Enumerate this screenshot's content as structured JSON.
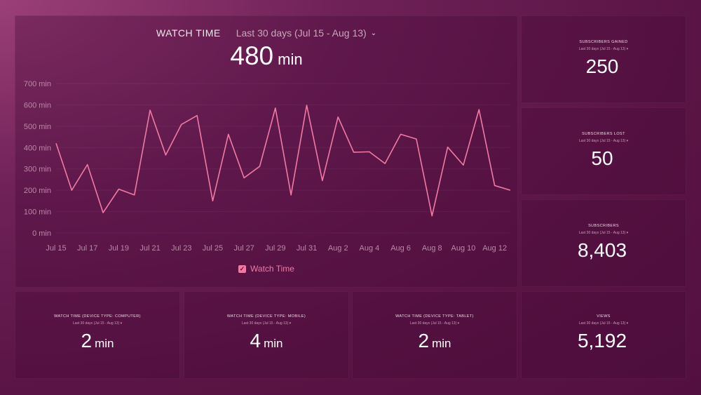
{
  "main": {
    "title": "WATCH TIME",
    "date_range": "Last 30 days (Jul 15 - Aug 13)",
    "metric_value": "480",
    "metric_unit": "min",
    "legend_label": "Watch Time"
  },
  "chart_data": {
    "type": "line",
    "x": [
      "Jul 15",
      "Jul 16",
      "Jul 17",
      "Jul 18",
      "Jul 19",
      "Jul 20",
      "Jul 21",
      "Jul 22",
      "Jul 23",
      "Jul 24",
      "Jul 25",
      "Jul 26",
      "Jul 27",
      "Jul 28",
      "Jul 29",
      "Jul 30",
      "Jul 31",
      "Aug 1",
      "Aug 2",
      "Aug 3",
      "Aug 4",
      "Aug 5",
      "Aug 6",
      "Aug 7",
      "Aug 8",
      "Aug 9",
      "Aug 10",
      "Aug 11",
      "Aug 12",
      "Aug 13"
    ],
    "x_tick_labels": [
      "Jul 15",
      "Jul 17",
      "Jul 19",
      "Jul 21",
      "Jul 23",
      "Jul 25",
      "Jul 27",
      "Jul 29",
      "Jul 31",
      "Aug 2",
      "Aug 4",
      "Aug 6",
      "Aug 8",
      "Aug 10",
      "Aug 12"
    ],
    "series": [
      {
        "name": "Watch Time",
        "values": [
          420,
          200,
          320,
          95,
          205,
          178,
          575,
          365,
          508,
          550,
          150,
          462,
          258,
          312,
          585,
          178,
          598,
          245,
          543,
          378,
          380,
          325,
          462,
          440,
          80,
          402,
          318,
          578,
          222,
          200
        ]
      }
    ],
    "y_tick_labels": [
      "700 min",
      "600 min",
      "500 min",
      "400 min",
      "300 min",
      "200 min",
      "100 min",
      "0 min"
    ],
    "ylim": [
      0,
      700
    ],
    "line_color": "#f07aa4",
    "grid": true
  },
  "kpis": [
    {
      "title": "SUBSCRIBERS GAINED",
      "sub": "Last 30 days (Jul 15 - Aug 13)",
      "value": "250",
      "unit": ""
    },
    {
      "title": "SUBSCRIBERS LOST",
      "sub": "Last 30 days (Jul 15 - Aug 13)",
      "value": "50",
      "unit": ""
    },
    {
      "title": "SUBSCRIBERS",
      "sub": "Last 30 days (Jul 15 - Aug 13)",
      "value": "8,403",
      "unit": ""
    },
    {
      "title": "WATCH TIME (DEVICE TYPE: COMPUTER)",
      "sub": "Last 30 days (Jul 15 - Aug 13)",
      "value": "2",
      "unit": "min"
    },
    {
      "title": "WATCH TIME (DEVICE TYPE: MOBILE)",
      "sub": "Last 30 days (Jul 15 - Aug 13)",
      "value": "4",
      "unit": "min"
    },
    {
      "title": "WATCH TIME (DEVICE TYPE: TABLET)",
      "sub": "Last 30 days (Jul 15 - Aug 13)",
      "value": "2",
      "unit": "min"
    },
    {
      "title": "VIEWS",
      "sub": "Last 30 days (Jul 15 - Aug 13)",
      "value": "5,192",
      "unit": ""
    }
  ],
  "icons": {
    "dropdown": "chevron-down-icon",
    "legend_check": "checkbox-checked-icon"
  }
}
